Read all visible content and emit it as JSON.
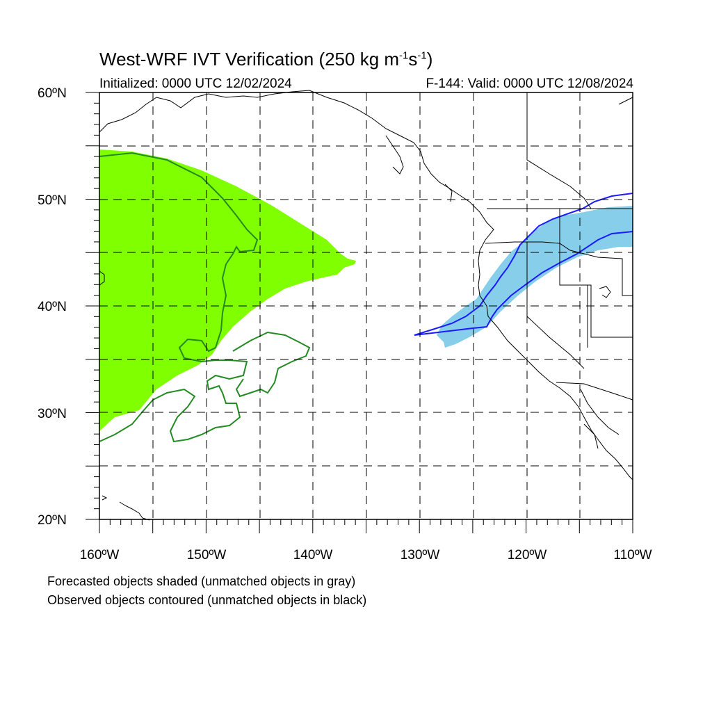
{
  "title_main": "West-WRF IVT Verification (250 kg m",
  "title_sup1": "-1",
  "title_mid": "s",
  "title_sup2": "-1",
  "title_end": ")",
  "initialized": "Initialized: 0000 UTC 12/02/2024",
  "valid": "F-144: Valid: 0000 UTC 12/08/2024",
  "lat_labels": [
    "60ºN",
    "50ºN",
    "40ºN",
    "30ºN",
    "20ºN"
  ],
  "lon_labels": [
    "160ºW",
    "150ºW",
    "140ºW",
    "130ºW",
    "120ºW",
    "110ºW"
  ],
  "footnote_1": "Forecasted objects shaded (unmatched objects in gray)",
  "footnote_2": "Observed objects contoured (unmatched objects in black)",
  "map": {
    "extent": {
      "lon_min": -160,
      "lon_max": -110,
      "lat_min": 20,
      "lat_max": 60
    },
    "gridlines_dashed": true,
    "colors": {
      "forecast_object_1": "#80ff00",
      "observed_contour_1": "#228b22",
      "forecast_object_2": "#87ceeb",
      "observed_contour_2": "#1a1aff",
      "coastline": "#000000"
    }
  }
}
